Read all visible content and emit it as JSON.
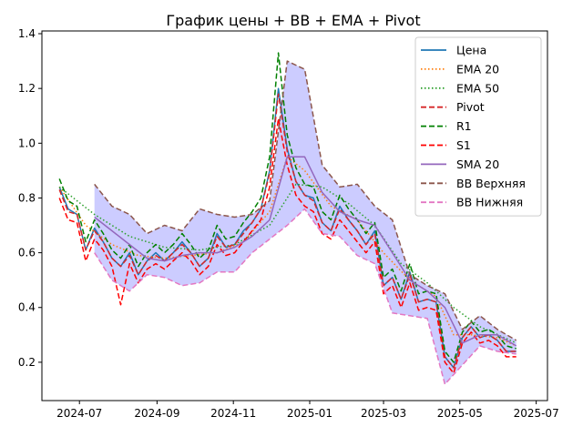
{
  "chart_data": {
    "type": "line",
    "title": "График цены + BB + EMA + Pivot",
    "xlabel": "",
    "ylabel": "",
    "xlim": [
      "2024-06-01",
      "2025-07-10"
    ],
    "ylim": [
      0.06,
      1.41
    ],
    "x_ticks": [
      "2024-07",
      "2024-09",
      "2024-11",
      "2025-01",
      "2025-03",
      "2025-05",
      "2025-07"
    ],
    "y_ticks": [
      0.2,
      0.4,
      0.6,
      0.8,
      1.0,
      1.2,
      1.4
    ],
    "grid": false,
    "legend_position": "top-right",
    "bands": [
      {
        "name": "bb-fill",
        "color": "#0000ff",
        "opacity": 0.2,
        "upper_series": "BB Верхняя",
        "lower_series": "BB Нижняя"
      }
    ],
    "series": [
      {
        "name": "Цена",
        "color": "#1f77b4",
        "style": "solid",
        "x": [
          "2024-06-15",
          "2024-06-22",
          "2024-06-29",
          "2024-07-06",
          "2024-07-13",
          "2024-07-20",
          "2024-07-27",
          "2024-08-03",
          "2024-08-10",
          "2024-08-17",
          "2024-08-24",
          "2024-08-31",
          "2024-09-07",
          "2024-09-14",
          "2024-09-21",
          "2024-09-28",
          "2024-10-05",
          "2024-10-12",
          "2024-10-19",
          "2024-10-26",
          "2024-11-02",
          "2024-11-09",
          "2024-11-16",
          "2024-11-23",
          "2024-11-30",
          "2024-12-07",
          "2024-12-14",
          "2024-12-21",
          "2024-12-28",
          "2025-01-04",
          "2025-01-11",
          "2025-01-18",
          "2025-01-25",
          "2025-02-01",
          "2025-02-08",
          "2025-02-15",
          "2025-02-22",
          "2025-03-01",
          "2025-03-08",
          "2025-03-15",
          "2025-03-22",
          "2025-03-29",
          "2025-04-05",
          "2025-04-12",
          "2025-04-19",
          "2025-04-26",
          "2025-05-03",
          "2025-05-10",
          "2025-05-17",
          "2025-05-24",
          "2025-05-31",
          "2025-06-07",
          "2025-06-15"
        ],
        "y": [
          0.84,
          0.76,
          0.74,
          0.61,
          0.69,
          0.64,
          0.58,
          0.55,
          0.6,
          0.52,
          0.57,
          0.6,
          0.57,
          0.6,
          0.64,
          0.6,
          0.55,
          0.58,
          0.67,
          0.62,
          0.63,
          0.68,
          0.71,
          0.76,
          0.9,
          1.2,
          0.98,
          0.86,
          0.81,
          0.8,
          0.71,
          0.68,
          0.77,
          0.72,
          0.68,
          0.63,
          0.68,
          0.48,
          0.51,
          0.43,
          0.53,
          0.42,
          0.43,
          0.42,
          0.22,
          0.18,
          0.29,
          0.33,
          0.29,
          0.3,
          0.28,
          0.24,
          0.24
        ]
      },
      {
        "name": "EMA 20",
        "color": "#ff7f0e",
        "style": "dotted",
        "x": [
          "2024-06-15",
          "2024-07-06",
          "2024-07-27",
          "2024-08-17",
          "2024-09-07",
          "2024-09-28",
          "2024-10-19",
          "2024-11-09",
          "2024-11-30",
          "2024-12-14",
          "2024-12-28",
          "2025-01-18",
          "2025-02-08",
          "2025-03-01",
          "2025-03-22",
          "2025-04-12",
          "2025-04-26",
          "2025-05-10",
          "2025-05-31",
          "2025-06-15"
        ],
        "y": [
          0.84,
          0.7,
          0.63,
          0.59,
          0.58,
          0.59,
          0.6,
          0.64,
          0.75,
          0.95,
          0.9,
          0.77,
          0.72,
          0.6,
          0.5,
          0.44,
          0.3,
          0.3,
          0.29,
          0.26
        ]
      },
      {
        "name": "EMA 50",
        "color": "#2ca02c",
        "style": "dotted",
        "x": [
          "2024-06-15",
          "2024-07-13",
          "2024-08-10",
          "2024-09-07",
          "2024-10-05",
          "2024-11-02",
          "2024-11-30",
          "2024-12-21",
          "2025-01-11",
          "2025-02-01",
          "2025-02-22",
          "2025-03-15",
          "2025-04-05",
          "2025-04-26",
          "2025-05-17",
          "2025-06-15"
        ],
        "y": [
          0.84,
          0.74,
          0.66,
          0.62,
          0.61,
          0.63,
          0.7,
          0.85,
          0.84,
          0.78,
          0.7,
          0.56,
          0.49,
          0.4,
          0.33,
          0.27
        ]
      },
      {
        "name": "Pivot",
        "color": "#d62728",
        "style": "dashed",
        "x": [
          "2024-06-15",
          "2024-06-22",
          "2024-06-29",
          "2024-07-06",
          "2024-07-13",
          "2024-07-20",
          "2024-07-27",
          "2024-08-03",
          "2024-08-10",
          "2024-08-17",
          "2024-08-24",
          "2024-08-31",
          "2024-09-07",
          "2024-09-14",
          "2024-09-21",
          "2024-09-28",
          "2024-10-05",
          "2024-10-12",
          "2024-10-19",
          "2024-10-26",
          "2024-11-02",
          "2024-11-09",
          "2024-11-16",
          "2024-11-23",
          "2024-11-30",
          "2024-12-07",
          "2024-12-14",
          "2024-12-21",
          "2024-12-28",
          "2025-01-04",
          "2025-01-11",
          "2025-01-18",
          "2025-01-25",
          "2025-02-01",
          "2025-02-08",
          "2025-02-15",
          "2025-02-22",
          "2025-03-01",
          "2025-03-08",
          "2025-03-15",
          "2025-03-22",
          "2025-03-29",
          "2025-04-05",
          "2025-04-12",
          "2025-04-19",
          "2025-04-26",
          "2025-05-03",
          "2025-05-10",
          "2025-05-17",
          "2025-05-24",
          "2025-05-31",
          "2025-06-07",
          "2025-06-15"
        ],
        "y": [
          0.83,
          0.75,
          0.74,
          0.61,
          0.68,
          0.64,
          0.58,
          0.55,
          0.59,
          0.52,
          0.57,
          0.59,
          0.57,
          0.6,
          0.63,
          0.6,
          0.55,
          0.58,
          0.66,
          0.62,
          0.63,
          0.67,
          0.71,
          0.76,
          0.89,
          1.18,
          0.97,
          0.86,
          0.81,
          0.79,
          0.71,
          0.68,
          0.76,
          0.72,
          0.68,
          0.63,
          0.67,
          0.48,
          0.51,
          0.43,
          0.52,
          0.42,
          0.43,
          0.42,
          0.22,
          0.18,
          0.29,
          0.33,
          0.29,
          0.3,
          0.28,
          0.24,
          0.24
        ]
      },
      {
        "name": "R1",
        "color": "#008000",
        "style": "dashed",
        "x": [
          "2024-06-15",
          "2024-06-22",
          "2024-06-29",
          "2024-07-06",
          "2024-07-13",
          "2024-07-20",
          "2024-07-27",
          "2024-08-03",
          "2024-08-10",
          "2024-08-17",
          "2024-08-24",
          "2024-08-31",
          "2024-09-07",
          "2024-09-14",
          "2024-09-21",
          "2024-09-28",
          "2024-10-05",
          "2024-10-12",
          "2024-10-19",
          "2024-10-26",
          "2024-11-02",
          "2024-11-09",
          "2024-11-16",
          "2024-11-23",
          "2024-11-30",
          "2024-12-07",
          "2024-12-14",
          "2024-12-21",
          "2024-12-28",
          "2025-01-04",
          "2025-01-11",
          "2025-01-18",
          "2025-01-25",
          "2025-02-01",
          "2025-02-08",
          "2025-02-15",
          "2025-02-22",
          "2025-03-01",
          "2025-03-08",
          "2025-03-15",
          "2025-03-22",
          "2025-03-29",
          "2025-04-05",
          "2025-04-12",
          "2025-04-19",
          "2025-04-26",
          "2025-05-03",
          "2025-05-10",
          "2025-05-17",
          "2025-05-24",
          "2025-05-31",
          "2025-06-07",
          "2025-06-15"
        ],
        "y": [
          0.87,
          0.79,
          0.77,
          0.64,
          0.72,
          0.67,
          0.61,
          0.58,
          0.63,
          0.55,
          0.6,
          0.63,
          0.6,
          0.63,
          0.67,
          0.63,
          0.58,
          0.61,
          0.7,
          0.65,
          0.66,
          0.71,
          0.75,
          0.8,
          0.95,
          1.33,
          1.03,
          0.91,
          0.85,
          0.84,
          0.75,
          0.72,
          0.81,
          0.76,
          0.72,
          0.67,
          0.71,
          0.51,
          0.54,
          0.46,
          0.56,
          0.45,
          0.46,
          0.45,
          0.24,
          0.2,
          0.31,
          0.35,
          0.31,
          0.32,
          0.3,
          0.26,
          0.25
        ]
      },
      {
        "name": "S1",
        "color": "#ff0000",
        "style": "dashed",
        "x": [
          "2024-06-15",
          "2024-06-22",
          "2024-06-29",
          "2024-07-06",
          "2024-07-13",
          "2024-07-20",
          "2024-07-27",
          "2024-08-03",
          "2024-08-10",
          "2024-08-17",
          "2024-08-24",
          "2024-08-31",
          "2024-09-07",
          "2024-09-14",
          "2024-09-21",
          "2024-09-28",
          "2024-10-05",
          "2024-10-12",
          "2024-10-19",
          "2024-10-26",
          "2024-11-02",
          "2024-11-09",
          "2024-11-16",
          "2024-11-23",
          "2024-11-30",
          "2024-12-07",
          "2024-12-14",
          "2024-12-21",
          "2024-12-28",
          "2025-01-04",
          "2025-01-11",
          "2025-01-18",
          "2025-01-25",
          "2025-02-01",
          "2025-02-08",
          "2025-02-15",
          "2025-02-22",
          "2025-03-01",
          "2025-03-08",
          "2025-03-15",
          "2025-03-22",
          "2025-03-29",
          "2025-04-05",
          "2025-04-12",
          "2025-04-19",
          "2025-04-26",
          "2025-05-03",
          "2025-05-10",
          "2025-05-17",
          "2025-05-24",
          "2025-05-31",
          "2025-06-07",
          "2025-06-15"
        ],
        "y": [
          0.8,
          0.72,
          0.71,
          0.57,
          0.65,
          0.61,
          0.55,
          0.41,
          0.56,
          0.49,
          0.54,
          0.56,
          0.54,
          0.57,
          0.6,
          0.57,
          0.52,
          0.55,
          0.63,
          0.59,
          0.6,
          0.64,
          0.68,
          0.72,
          0.84,
          1.09,
          0.92,
          0.81,
          0.77,
          0.75,
          0.67,
          0.65,
          0.72,
          0.68,
          0.64,
          0.6,
          0.64,
          0.45,
          0.48,
          0.4,
          0.49,
          0.39,
          0.4,
          0.39,
          0.2,
          0.16,
          0.27,
          0.31,
          0.27,
          0.28,
          0.26,
          0.22,
          0.22
        ]
      },
      {
        "name": "SMA 20",
        "color": "#9467bd",
        "style": "solid",
        "x": [
          "2024-07-13",
          "2024-07-27",
          "2024-08-10",
          "2024-08-24",
          "2024-09-07",
          "2024-09-21",
          "2024-10-05",
          "2024-10-19",
          "2024-11-02",
          "2024-11-16",
          "2024-11-30",
          "2024-12-14",
          "2024-12-28",
          "2025-01-11",
          "2025-01-25",
          "2025-02-08",
          "2025-02-22",
          "2025-03-08",
          "2025-03-22",
          "2025-04-05",
          "2025-04-19",
          "2025-05-03",
          "2025-05-17",
          "2025-05-31",
          "2025-06-15"
        ],
        "y": [
          0.73,
          0.68,
          0.63,
          0.58,
          0.57,
          0.59,
          0.6,
          0.6,
          0.62,
          0.66,
          0.72,
          0.95,
          0.95,
          0.82,
          0.75,
          0.72,
          0.7,
          0.6,
          0.5,
          0.46,
          0.4,
          0.27,
          0.3,
          0.3,
          0.26
        ]
      },
      {
        "name": "BB Верхняя",
        "color": "#8c564b",
        "style": "dashed",
        "x": [
          "2024-07-13",
          "2024-07-27",
          "2024-08-10",
          "2024-08-24",
          "2024-09-07",
          "2024-09-21",
          "2024-10-05",
          "2024-10-19",
          "2024-11-02",
          "2024-11-16",
          "2024-11-30",
          "2024-12-14",
          "2024-12-28",
          "2025-01-11",
          "2025-01-25",
          "2025-02-08",
          "2025-02-22",
          "2025-03-08",
          "2025-03-22",
          "2025-04-05",
          "2025-04-19",
          "2025-05-03",
          "2025-05-17",
          "2025-05-31",
          "2025-06-15"
        ],
        "y": [
          0.85,
          0.77,
          0.74,
          0.67,
          0.7,
          0.68,
          0.76,
          0.74,
          0.73,
          0.74,
          0.79,
          1.3,
          1.27,
          0.92,
          0.84,
          0.85,
          0.77,
          0.72,
          0.52,
          0.48,
          0.45,
          0.32,
          0.37,
          0.32,
          0.28
        ]
      },
      {
        "name": "BB Нижняя",
        "color": "#e377c2",
        "style": "dashed",
        "x": [
          "2024-07-13",
          "2024-07-27",
          "2024-08-10",
          "2024-08-24",
          "2024-09-07",
          "2024-09-21",
          "2024-10-05",
          "2024-10-19",
          "2024-11-02",
          "2024-11-16",
          "2024-11-30",
          "2024-12-14",
          "2024-12-28",
          "2025-01-11",
          "2025-01-25",
          "2025-02-08",
          "2025-02-22",
          "2025-03-08",
          "2025-03-22",
          "2025-04-05",
          "2025-04-19",
          "2025-05-03",
          "2025-05-17",
          "2025-05-31",
          "2025-06-15"
        ],
        "y": [
          0.6,
          0.5,
          0.46,
          0.52,
          0.51,
          0.48,
          0.49,
          0.53,
          0.53,
          0.6,
          0.65,
          0.7,
          0.76,
          0.67,
          0.66,
          0.59,
          0.56,
          0.38,
          0.37,
          0.36,
          0.12,
          0.19,
          0.26,
          0.24,
          0.23
        ]
      }
    ]
  }
}
